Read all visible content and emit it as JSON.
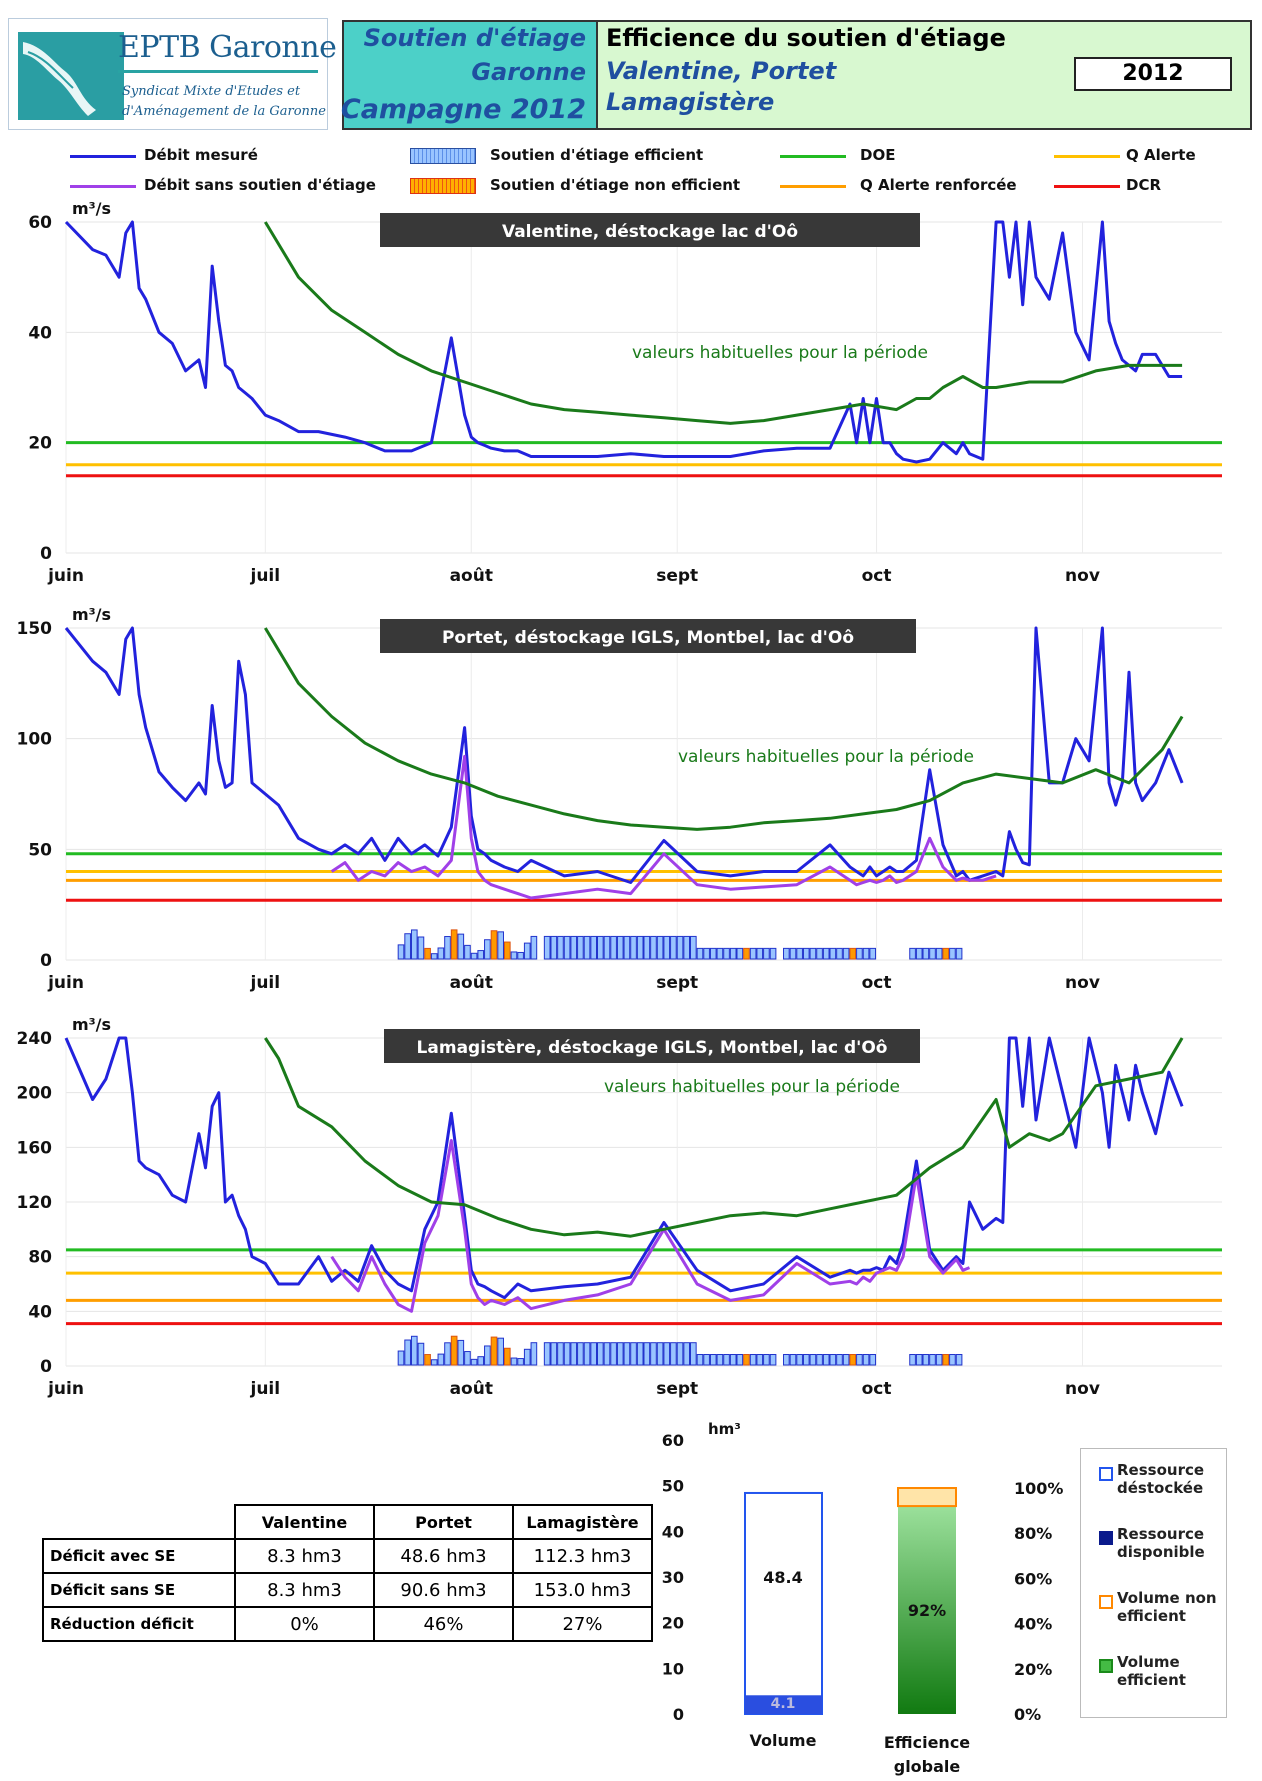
{
  "header": {
    "logo_name": "EPTB Garonne",
    "logo_sub1": "Syndicat Mixte d'Etudes et",
    "logo_sub2": "d'Aménagement de la Garonne",
    "left_line1": "Soutien d'étiage",
    "left_line2": "Garonne",
    "left_line3": "Campagne 2012",
    "right_line1": "Efficience du soutien d'étiage",
    "right_line2": "Valentine, Portet",
    "right_line3": "Lamagistère",
    "year": "2012"
  },
  "legend": {
    "debit_mesure": "Débit mesuré",
    "debit_sans": "Débit sans soutien d'étiage",
    "efficient": "Soutien d'étiage efficient",
    "non_efficient": "Soutien d'étiage non efficient",
    "doe": "DOE",
    "alerte_renforcee": "Q Alerte renforcée",
    "alerte": "Q Alerte",
    "dcr": "DCR"
  },
  "colors": {
    "measured": "#2222dd",
    "without": "#a040e8",
    "usual": "#1a7a1a",
    "doe": "#22bb22",
    "alerte": "#ffc000",
    "alerte_renforcee": "#ff9e00",
    "dcr": "#ee1111",
    "bar_fill": "#99c4ff",
    "bar_stroke": "#2233cc",
    "nonefficient": "#ff9900"
  },
  "chart_data": [
    {
      "type": "line",
      "title": "Valentine, déstockage lac d'Oô",
      "ylabel": "m³/s",
      "annotation": "valeurs habituelles pour la période",
      "x_ticks": [
        "juin",
        "juil",
        "août",
        "sept",
        "oct",
        "nov"
      ],
      "y_ticks": [
        0,
        20,
        40,
        60
      ],
      "ylim": [
        0,
        60
      ],
      "x_unit": "days since 1 June 2012",
      "thresholds": {
        "DOE": 20,
        "Q Alerte": 16,
        "DCR": 14
      },
      "series": [
        {
          "name": "Débit mesuré",
          "x": [
            0,
            4,
            6,
            8,
            9,
            10,
            11,
            12,
            14,
            16,
            18,
            20,
            21,
            22,
            23,
            24,
            25,
            26,
            27,
            28,
            30,
            32,
            35,
            38,
            42,
            45,
            48,
            52,
            55,
            58,
            60,
            61,
            62,
            63,
            64,
            66,
            68,
            70,
            75,
            80,
            85,
            90,
            95,
            100,
            105,
            110,
            115,
            118,
            119,
            120,
            121,
            122,
            123,
            124,
            125,
            126,
            128,
            130,
            132,
            134,
            135,
            136,
            138,
            140,
            141,
            142,
            143,
            144,
            145,
            146,
            148,
            150,
            152,
            154,
            156,
            157,
            158,
            159,
            160,
            161,
            162,
            164,
            166,
            168
          ],
          "y": [
            60,
            55,
            54,
            50,
            58,
            60,
            48,
            46,
            40,
            38,
            33,
            35,
            30,
            52,
            42,
            34,
            33,
            30,
            29,
            28,
            25,
            24,
            22,
            22,
            21,
            20,
            18.5,
            18.5,
            20,
            39,
            25,
            21,
            20,
            19.5,
            19,
            18.5,
            18.5,
            17.5,
            17.5,
            17.5,
            18,
            17.5,
            17.5,
            17.5,
            18.5,
            19,
            19,
            27,
            20,
            28,
            20,
            28,
            20,
            20,
            18,
            17,
            16.5,
            17,
            20,
            18,
            20,
            18,
            17,
            60,
            60,
            50,
            60,
            45,
            60,
            50,
            46,
            58,
            40,
            35,
            60,
            42,
            38,
            35,
            34,
            33,
            36,
            36,
            32,
            32
          ]
        },
        {
          "name": "valeurs habituelles pour la période",
          "x": [
            30,
            35,
            40,
            45,
            50,
            55,
            60,
            65,
            70,
            75,
            80,
            85,
            90,
            95,
            100,
            105,
            110,
            115,
            120,
            125,
            128,
            130,
            132,
            135,
            138,
            140,
            145,
            150,
            155,
            160,
            165,
            168
          ],
          "y": [
            60,
            50,
            44,
            40,
            36,
            33,
            31,
            29,
            27,
            26,
            25.5,
            25,
            24.5,
            24,
            23.5,
            24,
            25,
            26,
            27,
            26,
            28,
            28,
            30,
            32,
            30,
            30,
            31,
            31,
            33,
            34,
            34,
            34
          ]
        }
      ]
    },
    {
      "type": "line",
      "title": "Portet, déstockage IGLS, Montbel, lac d'Oô",
      "ylabel": "m³/s",
      "annotation": "valeurs habituelles pour la période",
      "x_ticks": [
        "juin",
        "juil",
        "août",
        "sept",
        "oct",
        "nov"
      ],
      "y_ticks": [
        0,
        50,
        100,
        150
      ],
      "ylim": [
        0,
        150
      ],
      "x_unit": "days since 1 June 2012",
      "thresholds": {
        "DOE": 48,
        "Q Alerte": 40,
        "Q Alerte renforcée": 36,
        "DCR": 27
      },
      "series": [
        {
          "name": "Débit mesuré",
          "x": [
            0,
            4,
            6,
            8,
            9,
            10,
            11,
            12,
            14,
            16,
            18,
            20,
            21,
            22,
            23,
            24,
            25,
            26,
            27,
            28,
            30,
            32,
            35,
            38,
            40,
            42,
            44,
            46,
            48,
            50,
            52,
            54,
            56,
            58,
            60,
            61,
            62,
            63,
            64,
            66,
            68,
            70,
            75,
            80,
            85,
            90,
            95,
            100,
            105,
            110,
            115,
            118,
            119,
            120,
            121,
            122,
            123,
            124,
            125,
            126,
            128,
            130,
            132,
            134,
            135,
            136,
            138,
            140,
            141,
            142,
            143,
            144,
            145,
            146,
            148,
            150,
            152,
            154,
            156,
            157,
            158,
            159,
            160,
            161,
            162,
            164,
            166,
            168
          ],
          "y": [
            150,
            135,
            130,
            120,
            145,
            150,
            120,
            105,
            85,
            78,
            72,
            80,
            75,
            115,
            90,
            78,
            80,
            135,
            120,
            80,
            75,
            70,
            55,
            50,
            48,
            52,
            48,
            55,
            45,
            55,
            48,
            52,
            47,
            60,
            105,
            65,
            50,
            48,
            45,
            42,
            40,
            45,
            38,
            40,
            35,
            54,
            40,
            38,
            40,
            40,
            52,
            42,
            40,
            38,
            42,
            38,
            40,
            42,
            40,
            40,
            45,
            86,
            52,
            38,
            40,
            36,
            38,
            40,
            38,
            58,
            50,
            44,
            43,
            150,
            80,
            80,
            100,
            90,
            150,
            80,
            70,
            80,
            130,
            80,
            72,
            80,
            95,
            80
          ]
        },
        {
          "name": "Débit sans soutien d'étiage",
          "x": [
            40,
            42,
            44,
            46,
            48,
            50,
            52,
            54,
            56,
            58,
            60,
            61,
            62,
            63,
            64,
            66,
            68,
            70,
            75,
            80,
            85,
            90,
            95,
            100,
            105,
            110,
            115,
            118,
            119,
            120,
            121,
            122,
            123,
            124,
            125,
            126,
            128,
            130,
            132,
            134,
            135,
            136,
            138,
            140
          ],
          "y": [
            40,
            44,
            36,
            40,
            38,
            44,
            40,
            42,
            38,
            45,
            92,
            55,
            40,
            36,
            34,
            32,
            30,
            28,
            30,
            32,
            30,
            48,
            34,
            32,
            33,
            34,
            42,
            36,
            34,
            35,
            36,
            35,
            36,
            38,
            35,
            36,
            40,
            55,
            42,
            36,
            37,
            36,
            36,
            38
          ]
        },
        {
          "name": "valeurs habituelles pour la période",
          "x": [
            30,
            35,
            40,
            45,
            50,
            55,
            60,
            65,
            70,
            75,
            80,
            85,
            90,
            95,
            100,
            105,
            110,
            115,
            120,
            125,
            130,
            135,
            140,
            145,
            150,
            155,
            160,
            165,
            168
          ],
          "y": [
            150,
            125,
            110,
            98,
            90,
            84,
            80,
            74,
            70,
            66,
            63,
            61,
            60,
            59,
            60,
            62,
            63,
            64,
            66,
            68,
            72,
            80,
            84,
            82,
            80,
            86,
            80,
            95,
            110
          ]
        }
      ],
      "support_bars": {
        "day_from": 50,
        "day_to": 134,
        "shape": "daily bars, efficient / non-efficient"
      }
    },
    {
      "type": "line",
      "title": "Lamagistère, déstockage IGLS, Montbel, lac d'Oô",
      "ylabel": "m³/s",
      "annotation": "valeurs habituelles pour la période",
      "x_ticks": [
        "juin",
        "juil",
        "août",
        "sept",
        "oct",
        "nov"
      ],
      "y_ticks": [
        0,
        40,
        80,
        120,
        160,
        200,
        240
      ],
      "ylim": [
        0,
        240
      ],
      "x_unit": "days since 1 June 2012",
      "thresholds": {
        "DOE": 85,
        "Q Alerte": 68,
        "Q Alerte renforcée": 48,
        "DCR": 31
      },
      "series": [
        {
          "name": "Débit mesuré",
          "x": [
            0,
            4,
            6,
            8,
            9,
            10,
            11,
            12,
            14,
            16,
            18,
            20,
            21,
            22,
            23,
            24,
            25,
            26,
            27,
            28,
            30,
            32,
            35,
            38,
            40,
            42,
            44,
            46,
            48,
            50,
            52,
            54,
            56,
            58,
            60,
            61,
            62,
            63,
            64,
            66,
            68,
            70,
            75,
            80,
            85,
            90,
            95,
            100,
            105,
            110,
            115,
            118,
            119,
            120,
            121,
            122,
            123,
            124,
            125,
            126,
            128,
            130,
            132,
            134,
            135,
            136,
            138,
            140,
            141,
            142,
            143,
            144,
            145,
            146,
            148,
            150,
            152,
            154,
            156,
            157,
            158,
            159,
            160,
            161,
            162,
            164,
            166,
            168
          ],
          "y": [
            240,
            195,
            210,
            240,
            240,
            200,
            150,
            145,
            140,
            125,
            120,
            170,
            145,
            190,
            200,
            120,
            125,
            110,
            100,
            80,
            75,
            60,
            60,
            80,
            62,
            70,
            62,
            88,
            70,
            60,
            55,
            100,
            120,
            185,
            110,
            70,
            60,
            58,
            55,
            50,
            60,
            55,
            58,
            60,
            65,
            105,
            70,
            55,
            60,
            80,
            65,
            70,
            68,
            70,
            70,
            72,
            70,
            80,
            75,
            90,
            150,
            85,
            70,
            80,
            75,
            120,
            100,
            108,
            105,
            240,
            240,
            190,
            240,
            180,
            240,
            200,
            160,
            240,
            200,
            160,
            220,
            200,
            180,
            220,
            200,
            170,
            215,
            190
          ]
        },
        {
          "name": "Débit sans soutien d'étiage",
          "x": [
            40,
            42,
            44,
            46,
            48,
            50,
            52,
            54,
            56,
            58,
            60,
            61,
            62,
            63,
            64,
            66,
            68,
            70,
            75,
            80,
            85,
            90,
            95,
            100,
            105,
            110,
            115,
            118,
            119,
            120,
            121,
            122,
            123,
            124,
            125,
            126,
            128,
            130,
            132,
            134,
            135,
            136
          ],
          "y": [
            80,
            65,
            55,
            80,
            60,
            45,
            40,
            90,
            110,
            165,
            100,
            60,
            50,
            45,
            48,
            45,
            50,
            42,
            48,
            52,
            60,
            100,
            60,
            48,
            52,
            75,
            60,
            62,
            60,
            65,
            62,
            68,
            70,
            72,
            70,
            80,
            140,
            80,
            68,
            78,
            70,
            72
          ]
        },
        {
          "name": "valeurs habituelles pour la période",
          "x": [
            30,
            32,
            35,
            40,
            45,
            50,
            55,
            60,
            65,
            70,
            75,
            80,
            85,
            90,
            95,
            100,
            105,
            110,
            115,
            120,
            125,
            130,
            135,
            140,
            142,
            145,
            148,
            150,
            155,
            160,
            165,
            168
          ],
          "y": [
            240,
            225,
            190,
            175,
            150,
            132,
            120,
            118,
            108,
            100,
            96,
            98,
            95,
            100,
            105,
            110,
            112,
            110,
            115,
            120,
            125,
            145,
            160,
            195,
            160,
            170,
            165,
            170,
            205,
            210,
            215,
            245
          ]
        }
      ],
      "support_bars": {
        "day_from": 50,
        "day_to": 134,
        "shape": "daily bars, efficient / non-efficient"
      }
    },
    {
      "type": "bar",
      "ylabel": "hm³",
      "categories": [
        "Volume",
        "Efficience globale"
      ],
      "y_ticks_left": [
        0,
        10,
        20,
        30,
        40,
        50,
        60
      ],
      "y_ticks_right": [
        "0%",
        "20%",
        "40%",
        "60%",
        "80%",
        "100%"
      ],
      "values_volume": {
        "Ressource déstockée": 48.4,
        "Ressource disponible": 4.1
      },
      "values_efficiency": {
        "Volume efficient": 92,
        "Volume non efficient": 8
      },
      "labels": {
        "volume_total": "48.4",
        "volume_available": "4.1",
        "efficiency": "92%"
      },
      "legend": [
        "Ressource déstockée",
        "Ressource disponible",
        "Volume non efficient",
        "Volume efficient"
      ]
    }
  ],
  "table": {
    "headers": [
      "Valentine",
      "Portet",
      "Lamagistère"
    ],
    "rows": [
      {
        "label": "Déficit avec SE",
        "values": [
          "8.3 hm3",
          "48.6 hm3",
          "112.3 hm3"
        ]
      },
      {
        "label": "Déficit sans SE",
        "values": [
          "8.3 hm3",
          "90.6 hm3",
          "153.0 hm3"
        ]
      },
      {
        "label": "Réduction déficit",
        "values": [
          "0%",
          "46%",
          "27%"
        ]
      }
    ]
  }
}
